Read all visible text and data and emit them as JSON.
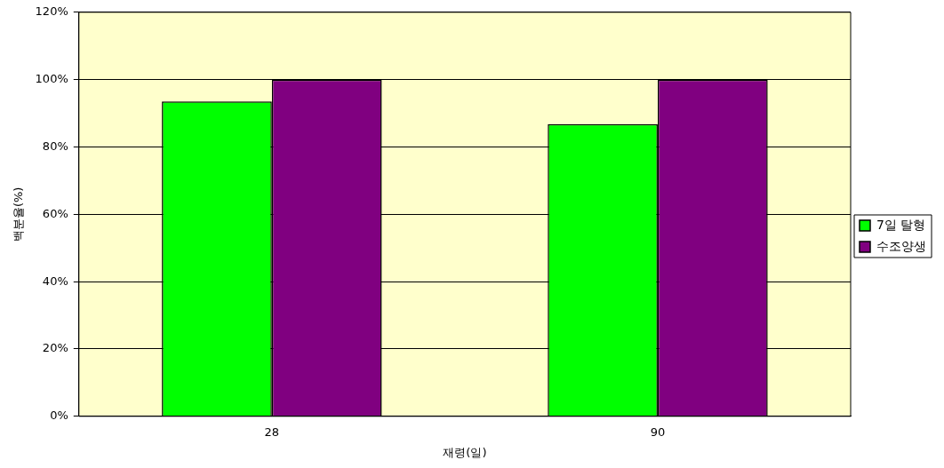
{
  "chart_data": {
    "type": "bar",
    "xlabel": "재령(일)",
    "ylabel": "백분율(%)",
    "categories": [
      "28",
      "90"
    ],
    "series": [
      {
        "name": "7일 탈형",
        "color": "#00ff00",
        "values": [
          93.5,
          86.8
        ]
      },
      {
        "name": "수조양생",
        "color": "#800080",
        "values": [
          100,
          100
        ]
      }
    ],
    "ylim": [
      0,
      120
    ],
    "yticks": [
      {
        "value": 0,
        "label": "0%"
      },
      {
        "value": 20,
        "label": "20%"
      },
      {
        "value": 40,
        "label": "40%"
      },
      {
        "value": 60,
        "label": "60%"
      },
      {
        "value": 80,
        "label": "80%"
      },
      {
        "value": 100,
        "label": "100%"
      },
      {
        "value": 120,
        "label": "120%"
      }
    ],
    "grid": "y",
    "legend": "right"
  }
}
